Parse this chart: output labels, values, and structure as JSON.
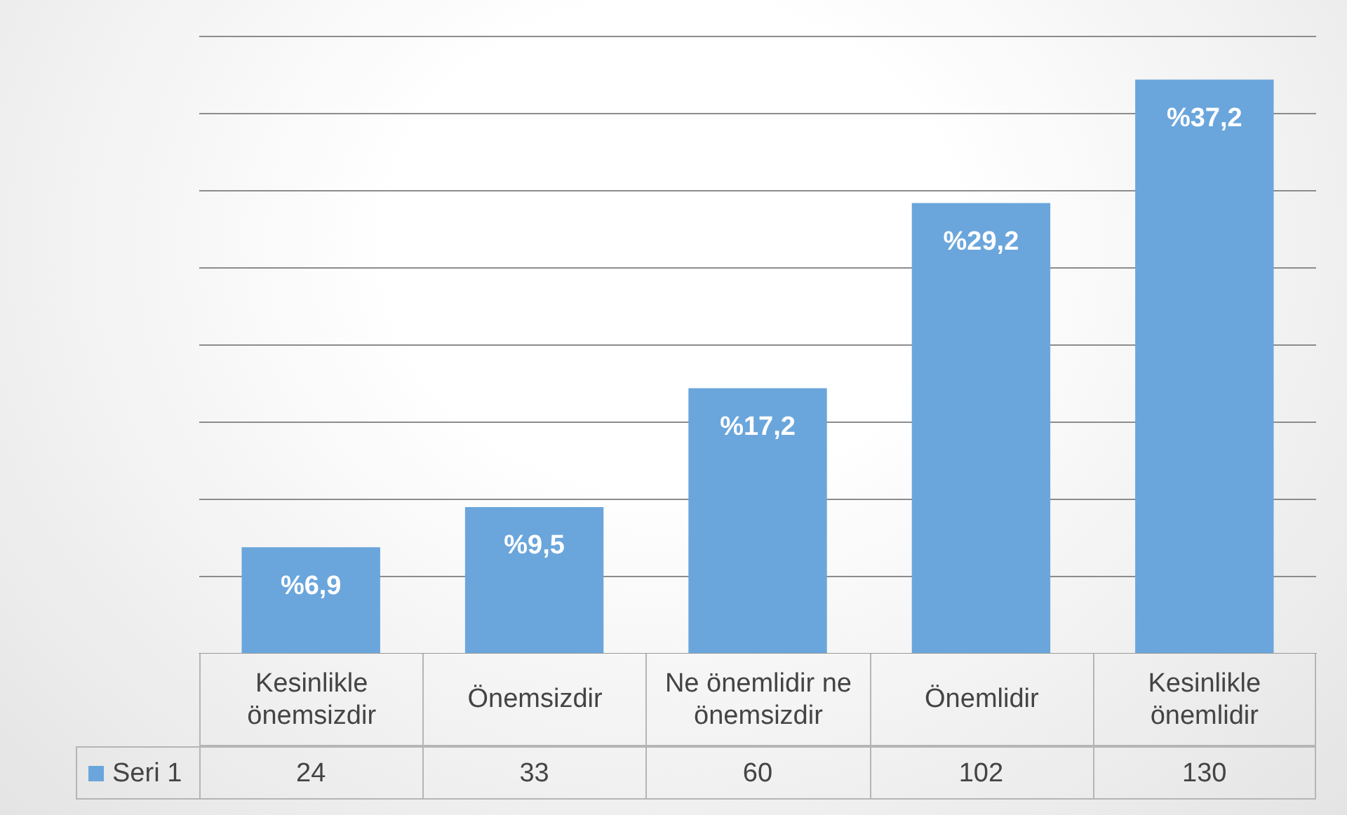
{
  "chart_data": {
    "type": "bar",
    "categories": [
      "Kesinlikle önemsizdir",
      "Önemsizdir",
      "Ne önemlidir ne önemsizdir",
      "Önemlidir",
      "Kesinlikle önemlidir"
    ],
    "series": [
      {
        "name": "Seri 1",
        "color": "#6aa6dc",
        "values": [
          6.9,
          9.5,
          17.2,
          29.2,
          37.2
        ],
        "value_labels": [
          "%6,9",
          "%9,5",
          "%17,2",
          "%29,2",
          "%37,2"
        ]
      }
    ],
    "annotations": [
      "24",
      "33",
      "60",
      "102",
      "130"
    ],
    "grid": "y",
    "tick_labels": "x",
    "legend": "bottom"
  }
}
